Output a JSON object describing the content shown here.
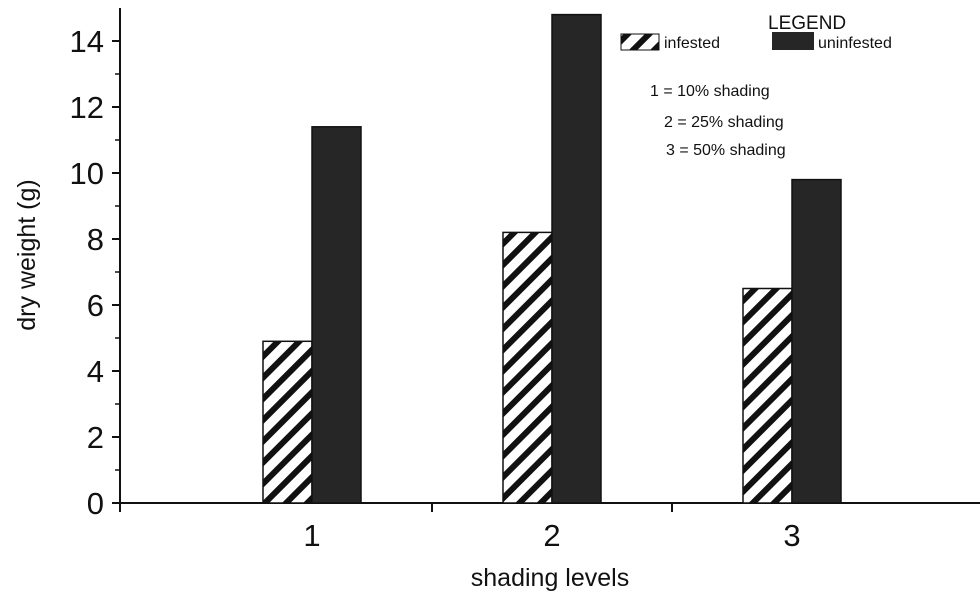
{
  "chart_data": {
    "type": "bar",
    "categories": [
      "1",
      "2",
      "3"
    ],
    "series": [
      {
        "name": "infested",
        "values": [
          4.9,
          8.2,
          6.5
        ],
        "fill": "hatch"
      },
      {
        "name": "uninfested",
        "values": [
          11.4,
          14.8,
          9.8
        ],
        "fill": "#262626"
      }
    ],
    "ylim": [
      0,
      15
    ],
    "yticks": [
      0,
      2,
      4,
      6,
      8,
      10,
      12,
      14
    ],
    "xlabel": "shading levels",
    "ylabel": "dry weight (g)",
    "legend": {
      "title": "LEGEND",
      "placement": "top-right",
      "notes": [
        "1 = 10% shading",
        "2 = 25% shading",
        "3 = 50% shading"
      ]
    },
    "grid": false
  }
}
